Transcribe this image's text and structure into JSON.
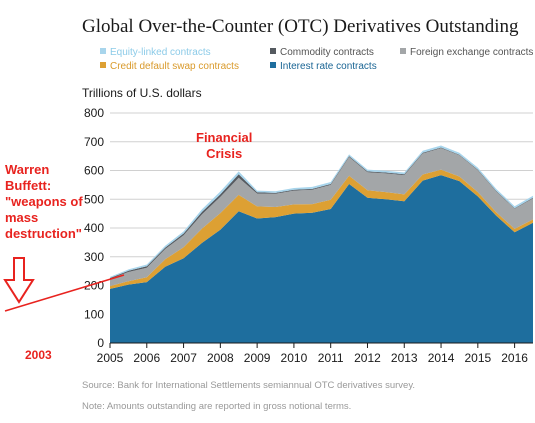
{
  "title": "Global Over-the-Counter (OTC) Derivatives Outstanding",
  "legend": [
    {
      "key": "equity",
      "label": "Equity-linked contracts",
      "color": "#a8d5ec"
    },
    {
      "key": "commodity",
      "label": "Commodity contracts",
      "color": "#555a60"
    },
    {
      "key": "fx",
      "label": "Foreign exchange contracts",
      "color": "#a3a6a8"
    },
    {
      "key": "cds",
      "label": "Credit default swap contracts",
      "color": "#dda033"
    },
    {
      "key": "ir",
      "label": "Interest rate contracts",
      "color": "#1e6e9e"
    }
  ],
  "annotations": {
    "buffett": [
      "Warren",
      "Buffett:",
      "\"weapons of",
      "mass",
      "destruction\""
    ],
    "year": "2003",
    "crisis": [
      "Financial",
      "Crisis"
    ],
    "arrow_color": "#e8231f"
  },
  "footnotes": {
    "source": "Source: Bank for International Settlements semiannual OTC derivatives survey.",
    "note": "Note: Amounts outstanding are reported in gross notional terms."
  },
  "chart_data": {
    "type": "area",
    "stacked": true,
    "title": "Global Over-the-Counter (OTC) Derivatives Outstanding",
    "ylabel": "Trillions of U.S. dollars",
    "xlabel": "",
    "ylim": [
      0,
      800
    ],
    "xlim": [
      2005,
      2016.5
    ],
    "y_ticks": [
      0,
      100,
      200,
      300,
      400,
      500,
      600,
      700,
      800
    ],
    "x_ticks": [
      "2005",
      "2006",
      "2007",
      "2008",
      "2009",
      "2010",
      "2011",
      "2012",
      "2013",
      "2014",
      "2015",
      "2016"
    ],
    "grid": true,
    "x": [
      2005.0,
      2005.5,
      2006.0,
      2006.5,
      2007.0,
      2007.5,
      2008.0,
      2008.5,
      2009.0,
      2009.5,
      2010.0,
      2010.5,
      2011.0,
      2011.5,
      2012.0,
      2012.5,
      2013.0,
      2013.5,
      2014.0,
      2014.5,
      2015.0,
      2015.5,
      2016.0,
      2016.5
    ],
    "series": [
      {
        "name": "Interest rate contracts",
        "color": "#1e6e9e",
        "values": [
          188,
          203,
          212,
          265,
          295,
          348,
          394,
          458,
          433,
          438,
          450,
          453,
          466,
          553,
          505,
          500,
          493,
          565,
          584,
          563,
          510,
          443,
          385,
          418
        ]
      },
      {
        "name": "Credit default swap contracts",
        "color": "#dda033",
        "values": [
          10,
          12,
          17,
          26,
          38,
          50,
          58,
          57,
          42,
          35,
          32,
          30,
          32,
          29,
          26,
          25,
          24,
          21,
          19,
          16,
          15,
          12,
          12,
          12
        ]
      },
      {
        "name": "Foreign exchange contracts",
        "color": "#a3a6a8",
        "values": [
          25,
          32,
          33,
          36,
          42,
          50,
          56,
          60,
          45,
          46,
          48,
          50,
          52,
          65,
          63,
          65,
          67,
          73,
          75,
          74,
          76,
          72,
          70,
          73
        ]
      },
      {
        "name": "Commodity contracts",
        "color": "#555a60",
        "values": [
          3,
          4,
          5,
          5,
          6,
          8,
          9,
          12,
          4,
          3,
          3,
          3,
          3,
          3,
          3,
          3,
          3,
          3,
          2,
          2,
          2,
          2,
          2,
          2
        ]
      },
      {
        "name": "Equity-linked contracts",
        "color": "#a8d5ec",
        "values": [
          4,
          5,
          6,
          6,
          7,
          9,
          10,
          10,
          6,
          6,
          6,
          7,
          7,
          6,
          6,
          6,
          6,
          7,
          7,
          7,
          7,
          7,
          7,
          7
        ]
      }
    ]
  }
}
